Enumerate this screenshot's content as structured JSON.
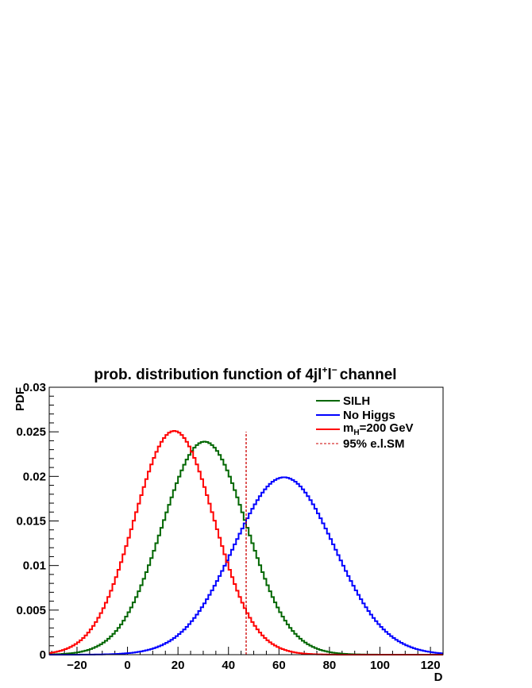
{
  "chart_data": {
    "type": "line",
    "title": {
      "prefix": "prob. distribution function of  4jl",
      "sup1": "+",
      "mid": "l",
      "sup2": "−",
      "suffix": "channel"
    },
    "xlabel": "D",
    "ylabel": "PDF",
    "xlim": [
      -31,
      125
    ],
    "ylim": [
      0,
      0.03
    ],
    "x_ticks": [
      {
        "v": -20,
        "label": "−20"
      },
      {
        "v": 0,
        "label": "0"
      },
      {
        "v": 20,
        "label": "20"
      },
      {
        "v": 40,
        "label": "40"
      },
      {
        "v": 60,
        "label": "60"
      },
      {
        "v": 80,
        "label": "80"
      },
      {
        "v": 100,
        "label": "100"
      },
      {
        "v": 120,
        "label": "120"
      }
    ],
    "y_ticks": [
      {
        "v": 0,
        "label": "0"
      },
      {
        "v": 0.005,
        "label": "0.005"
      },
      {
        "v": 0.01,
        "label": "0.01"
      },
      {
        "v": 0.015,
        "label": "0.015"
      },
      {
        "v": 0.02,
        "label": "0.02"
      },
      {
        "v": 0.025,
        "label": "0.025"
      },
      {
        "v": 0.03,
        "label": "0.03"
      }
    ],
    "bin_width": 1,
    "series": [
      {
        "key": "silh",
        "name": "SILH",
        "color": "#006600",
        "mean": 30.5,
        "sigma": 16.7,
        "peak": 0.0239
      },
      {
        "key": "nohiggs",
        "name": "No Higgs",
        "color": "#0000ff",
        "mean": 62.0,
        "sigma": 20.0,
        "peak": 0.0199
      },
      {
        "key": "mh200",
        "name": "m",
        "name_sub": "H",
        "name_rest": "=200 GeV",
        "color": "#ff0000",
        "mean": 18.5,
        "sigma": 15.8,
        "peak": 0.0251
      }
    ],
    "cutline": {
      "name": "95% e.l.SM",
      "x": 47,
      "y_top": 0.025,
      "color": "#cc0000",
      "style": "dashed"
    },
    "legend_position": "top-right",
    "grid": false
  }
}
